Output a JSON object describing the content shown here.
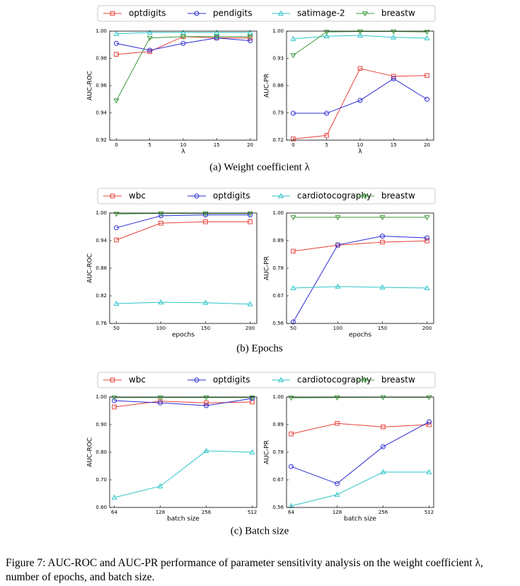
{
  "chart_data": [
    {
      "type": "line",
      "ylabel": "AUC-ROC",
      "xlabel": "λ",
      "x": [
        0,
        5,
        10,
        15,
        20
      ],
      "xlim": [
        -1,
        21
      ],
      "xticks": [
        0,
        5,
        10,
        15,
        20
      ],
      "ylim": [
        0.92,
        1.0
      ],
      "yticks": [
        0.92,
        0.94,
        0.96,
        0.98,
        {
          "value": 1.0,
          "label": "1.00"
        }
      ],
      "series": [
        {
          "name": "optdigits",
          "color": "#e8403a",
          "marker": "s",
          "values": [
            0.983,
            0.985,
            0.996,
            0.995,
            0.995
          ]
        },
        {
          "name": "pendigits",
          "color": "#2b2bd6",
          "marker": "o",
          "values": [
            0.991,
            0.986,
            0.991,
            0.995,
            0.993
          ]
        },
        {
          "name": "satimage-2",
          "color": "#2ec4c8",
          "marker": "^",
          "values": [
            0.998,
            0.999,
            0.999,
            0.999,
            0.999
          ]
        },
        {
          "name": "breastw",
          "color": "#3a9a3a",
          "marker": "v",
          "values": [
            0.949,
            0.995,
            0.996,
            0.996,
            0.996
          ]
        }
      ]
    },
    {
      "type": "line",
      "ylabel": "AUC-PR",
      "xlabel": "λ",
      "x": [
        0,
        5,
        10,
        15,
        20
      ],
      "xlim": [
        -1,
        21
      ],
      "xticks": [
        0,
        5,
        10,
        15,
        20
      ],
      "ylim": [
        0.72,
        1.0
      ],
      "yticks": [
        0.72,
        0.79,
        0.86,
        0.93,
        {
          "value": 1.0,
          "label": "1.00"
        }
      ],
      "series": [
        {
          "color": "#e8403a",
          "marker": "s",
          "values": [
            0.723,
            0.732,
            0.904,
            0.884,
            0.886
          ]
        },
        {
          "color": "#2b2bd6",
          "marker": "o",
          "values": [
            0.789,
            0.789,
            0.822,
            0.878,
            0.825
          ]
        },
        {
          "color": "#2ec4c8",
          "marker": "^",
          "values": [
            0.98,
            0.987,
            0.989,
            0.984,
            0.982
          ]
        },
        {
          "color": "#3a9a3a",
          "marker": "v",
          "values": [
            0.938,
            0.998,
            0.999,
            0.999,
            0.998
          ]
        }
      ]
    },
    {
      "type": "line",
      "ylabel": "AUC-ROC",
      "xlabel": "epochs",
      "x": [
        50,
        100,
        150,
        200
      ],
      "xlim": [
        42.5,
        207.5
      ],
      "xticks": [
        50,
        100,
        150,
        200
      ],
      "ylim": [
        0.76,
        1.0
      ],
      "yticks": [
        0.76,
        0.82,
        0.88,
        0.94,
        {
          "value": 1.0,
          "label": "1.00"
        }
      ],
      "series": [
        {
          "name": "wbc",
          "color": "#e8403a",
          "marker": "s",
          "values": [
            0.9415,
            0.978,
            0.981,
            0.981
          ]
        },
        {
          "name": "optdigits",
          "color": "#2b2bd6",
          "marker": "o",
          "values": [
            0.968,
            0.994,
            0.996,
            0.996
          ]
        },
        {
          "name": "cardiotocography",
          "color": "#2ec4c8",
          "marker": "^",
          "values": [
            0.803,
            0.806,
            0.805,
            0.802
          ]
        },
        {
          "name": "breastw",
          "color": "#3a9a3a",
          "marker": "v",
          "values": [
            0.998,
            0.999,
            0.999,
            0.999
          ]
        }
      ]
    },
    {
      "type": "line",
      "ylabel": "AUC-PR",
      "xlabel": "epochs",
      "x": [
        50,
        100,
        150,
        200
      ],
      "xlim": [
        42.5,
        207.5
      ],
      "xticks": [
        50,
        100,
        150,
        200
      ],
      "ylim": [
        0.56,
        1.0
      ],
      "yticks": [
        0.56,
        0.67,
        0.78,
        0.89,
        {
          "value": 1.0,
          "label": "1.00"
        }
      ],
      "series": [
        {
          "color": "#e8403a",
          "marker": "s",
          "values": [
            0.848,
            0.872,
            0.884,
            0.889
          ]
        },
        {
          "color": "#2b2bd6",
          "marker": "o",
          "values": [
            0.566,
            0.873,
            0.908,
            0.901
          ]
        },
        {
          "color": "#2ec4c8",
          "marker": "^",
          "values": [
            0.701,
            0.707,
            0.704,
            0.701
          ]
        },
        {
          "color": "#3a9a3a",
          "marker": "v",
          "values": [
            0.983,
            0.983,
            0.983,
            0.983
          ]
        }
      ]
    },
    {
      "type": "line",
      "ylabel": "AUC-ROC",
      "xlabel": "batch size",
      "categories": [
        "64",
        "128",
        "256",
        "512"
      ],
      "ylim": [
        0.6,
        1.0
      ],
      "yticks": [
        {
          "value": 0.6,
          "label": "0.60"
        },
        {
          "value": 0.7,
          "label": "0.70"
        },
        {
          "value": 0.8,
          "label": "0.80"
        },
        {
          "value": 0.9,
          "label": "0.90"
        },
        {
          "value": 1.0,
          "label": "1.00"
        }
      ],
      "series": [
        {
          "name": "wbc",
          "color": "#e8403a",
          "marker": "s",
          "values": [
            0.964,
            0.985,
            0.979,
            0.982
          ]
        },
        {
          "name": "optdigits",
          "color": "#2b2bd6",
          "marker": "o",
          "values": [
            0.987,
            0.979,
            0.969,
            0.995
          ]
        },
        {
          "name": "cardiotocography",
          "color": "#2ec4c8",
          "marker": "^",
          "values": [
            0.636,
            0.677,
            0.805,
            0.8
          ]
        },
        {
          "name": "breastw",
          "color": "#3a9a3a",
          "marker": "v",
          "values": [
            0.998,
            0.998,
            0.998,
            0.998
          ]
        }
      ]
    },
    {
      "type": "line",
      "ylabel": "AUC-PR",
      "xlabel": "batch size",
      "categories": [
        "64",
        "128",
        "256",
        "512"
      ],
      "ylim": [
        0.56,
        1.0
      ],
      "yticks": [
        0.56,
        0.67,
        0.78,
        0.89,
        {
          "value": 1.0,
          "label": "1.00"
        }
      ],
      "series": [
        {
          "color": "#e8403a",
          "marker": "s",
          "values": [
            0.853,
            0.895,
            0.881,
            0.89
          ]
        },
        {
          "color": "#2b2bd6",
          "marker": "o",
          "values": [
            0.723,
            0.655,
            0.802,
            0.901
          ]
        },
        {
          "color": "#2ec4c8",
          "marker": "^",
          "values": [
            0.566,
            0.611,
            0.701,
            0.701
          ]
        },
        {
          "color": "#3a9a3a",
          "marker": "v",
          "values": [
            0.997,
            0.998,
            0.999,
            0.999
          ]
        }
      ]
    }
  ],
  "subcaptions": [
    "(a) Weight coefficient λ",
    "(b) Epochs",
    "(c) Batch size"
  ],
  "figure_caption": "Figure 7: AUC-ROC and AUC-PR performance of parameter sensitivity analysis on the weight coefficient λ, number of epochs, and batch size."
}
